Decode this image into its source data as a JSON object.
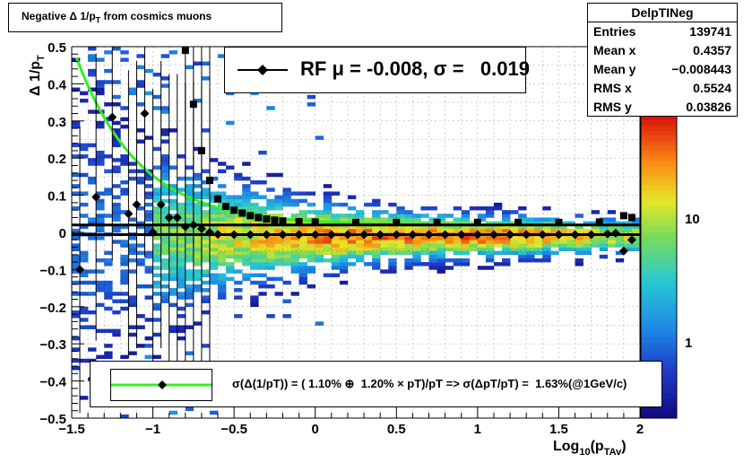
{
  "chart_data": {
    "type": "heatmap",
    "title": "Negative Δ 1/p_T from cosmics muons",
    "xlabel": "Log10(pTAv)",
    "ylabel": "Δ 1/pT",
    "xlim": [
      -1.5,
      2.0
    ],
    "ylim": [
      -0.5,
      0.5
    ],
    "x_ticks": [
      "−1.5",
      "−1",
      "−0.5",
      "0",
      "0.5",
      "1",
      "1.5",
      "2"
    ],
    "y_ticks": [
      "−0.5",
      "−0.4",
      "−0.3",
      "−0.2",
      "−0.1",
      "0",
      "0.1",
      "0.2",
      "0.3",
      "0.4",
      "0.5"
    ],
    "colorbar_labels": [
      "1",
      "10"
    ],
    "grid": true,
    "series": [
      {
        "name": "mean",
        "marker": "diamond",
        "x": [
          -1.45,
          -1.35,
          -1.25,
          -1.15,
          -1.1,
          -1.05,
          -1.0,
          -0.95,
          -0.9,
          -0.85,
          -0.8,
          -0.75,
          -0.7,
          -0.65,
          -0.6,
          -0.5,
          -0.4,
          -0.3,
          -0.2,
          -0.1,
          0.0,
          0.1,
          0.2,
          0.3,
          0.4,
          0.5,
          0.6,
          0.7,
          0.8,
          0.9,
          1.0,
          1.1,
          1.2,
          1.3,
          1.4,
          1.5,
          1.6,
          1.7,
          1.8,
          1.85,
          1.9,
          1.95
        ],
        "y": [
          -0.1,
          0.095,
          0.31,
          0.05,
          0.075,
          0.32,
          0.0,
          0.075,
          0.04,
          0.04,
          0.015,
          0.02,
          0.01,
          0.0,
          -0.005,
          -0.006,
          -0.006,
          -0.006,
          -0.006,
          -0.006,
          -0.006,
          -0.006,
          -0.006,
          -0.006,
          -0.006,
          -0.006,
          -0.006,
          -0.006,
          -0.006,
          -0.006,
          -0.006,
          -0.006,
          -0.006,
          -0.006,
          -0.006,
          -0.006,
          -0.006,
          -0.006,
          -0.004,
          -0.002,
          -0.05,
          -0.02
        ]
      },
      {
        "name": "sigma",
        "marker": "square",
        "x": [
          -0.8,
          -0.75,
          -0.7,
          -0.65,
          -0.6,
          -0.55,
          -0.5,
          -0.45,
          -0.4,
          -0.35,
          -0.3,
          -0.25,
          -0.2,
          -0.1,
          0.0,
          0.25,
          0.5,
          0.75,
          1.0,
          1.25,
          1.5,
          1.75,
          1.9,
          1.95
        ],
        "y": [
          0.49,
          0.345,
          0.22,
          0.14,
          0.09,
          0.07,
          0.06,
          0.052,
          0.045,
          0.04,
          0.036,
          0.033,
          0.031,
          0.029,
          0.028,
          0.027,
          0.027,
          0.027,
          0.027,
          0.027,
          0.027,
          0.028,
          0.045,
          0.04
        ]
      }
    ]
  },
  "title_box": {
    "text": "Negative Δ 1/p",
    "sub": "T",
    "rest": " from cosmics muons"
  },
  "stats": {
    "name": "DelpTINeg",
    "rows": [
      {
        "label": "Entries",
        "value": "139741"
      },
      {
        "label": "Mean x",
        "value": "0.4357"
      },
      {
        "label": "Mean y",
        "value": "−0.008443"
      },
      {
        "label": "RMS x",
        "value": "0.5524"
      },
      {
        "label": "RMS y",
        "value": "0.03826"
      }
    ]
  },
  "rf_legend": {
    "text": "RF μ = -0.008, σ =   0.019"
  },
  "fit_legend": {
    "text": "σ(Δ(1/pT)) = ( 1.10% ⊕  1.20% × pT)/pT => σ(ΔpT/pT) =  1.63%(@1GeV/c)"
  },
  "axis_labels": {
    "y_main": "Δ 1/p",
    "y_sub": "T",
    "x_main": "Log",
    "x_sub1": "10",
    "x_mid": "(p",
    "x_sub2": "TAv",
    "x_end": ")"
  },
  "colors": {
    "fit_line": "#33ee22",
    "hline": "#000000"
  },
  "hlines": [
    0.02,
    -0.006
  ]
}
